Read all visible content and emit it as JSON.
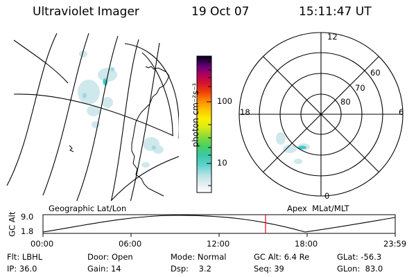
{
  "header": {
    "instrument": "Ultraviolet Imager",
    "date": "19 Oct 07",
    "time": "15:11:47 UT"
  },
  "colorbar": {
    "unit_label": "photon cm⁻²s⁻¹",
    "tick_100": "100",
    "tick_10": "10",
    "colors": [
      "#ffffff",
      "#e6f0f0",
      "#c8e6e6",
      "#a0dcdc",
      "#64d2d2",
      "#32c8c8",
      "#46d28c",
      "#78dc50",
      "#b4e628",
      "#f0f000",
      "#ffd200",
      "#ff9600",
      "#ff5a00",
      "#e61e14",
      "#c80a3c",
      "#a00064",
      "#6e0078",
      "#3c0050",
      "#000028"
    ]
  },
  "left_map": {
    "label": "Geographic Lat/Lon"
  },
  "right_map": {
    "label": "Apex  MLat/MLT",
    "mlt_12": "12",
    "mlt_18": "18",
    "mlt_6": "6",
    "mlt_0": "0",
    "lat_60": "60",
    "lat_70": "70",
    "lat_80": "80"
  },
  "timeline": {
    "ylabel": "GC Alt",
    "y_max": "9.0",
    "y_min": "1.8",
    "ticks": [
      "00:00",
      "06:00",
      "12:00",
      "18:00",
      "23:59"
    ],
    "current_marker_color": "#ff0000"
  },
  "status": {
    "filter": "Flt: LBHL",
    "ip": "IP: 36.0",
    "door": "Door: Open",
    "gain": "Gain: 14",
    "mode": "Mode: Normal",
    "dsp": "Dsp:    3.2",
    "gc_alt": "GC Alt: 6.4 Re",
    "seq": "Seq: 39",
    "glat": "GLat: -56.3",
    "glon": "GLon:  83.0"
  }
}
